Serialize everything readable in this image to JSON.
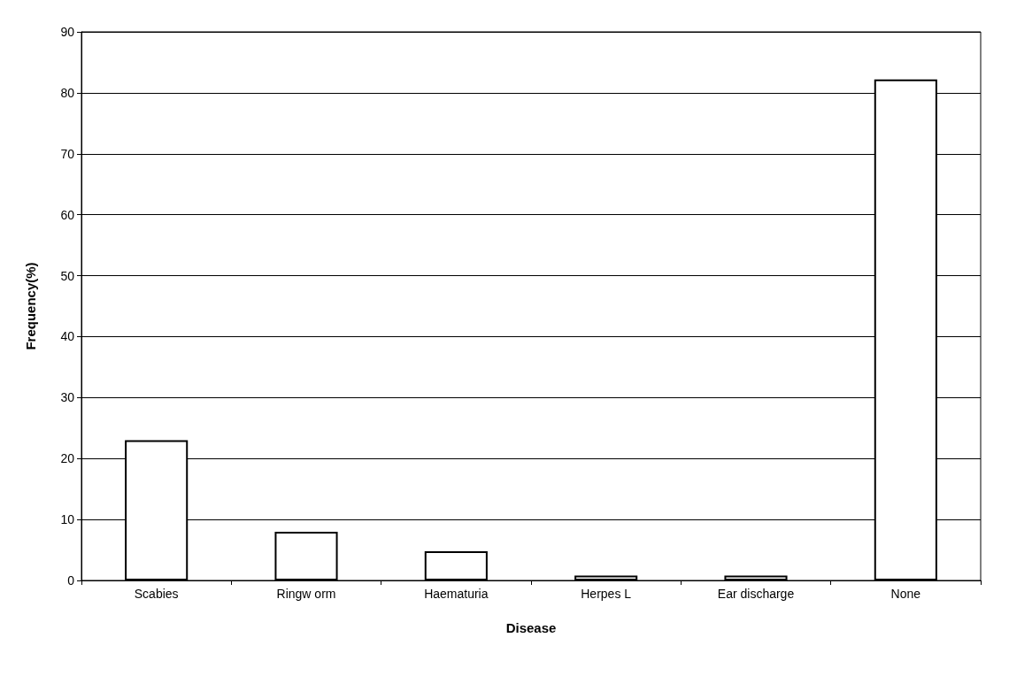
{
  "chart_data": {
    "type": "bar",
    "xlabel": "Disease",
    "ylabel": "Frequency(%)",
    "categories": [
      "Scabies",
      "Ringw orm",
      "Haematuria",
      "Herpes L",
      "Ear discharge",
      "None"
    ],
    "values": [
      23,
      8,
      4.8,
      0.8,
      0.8,
      82.2
    ],
    "color": "#ffffff",
    "ylim": [
      0,
      90
    ],
    "yticks": [
      0,
      10,
      20,
      30,
      40,
      50,
      60,
      70,
      80,
      90
    ],
    "grid": "y"
  }
}
